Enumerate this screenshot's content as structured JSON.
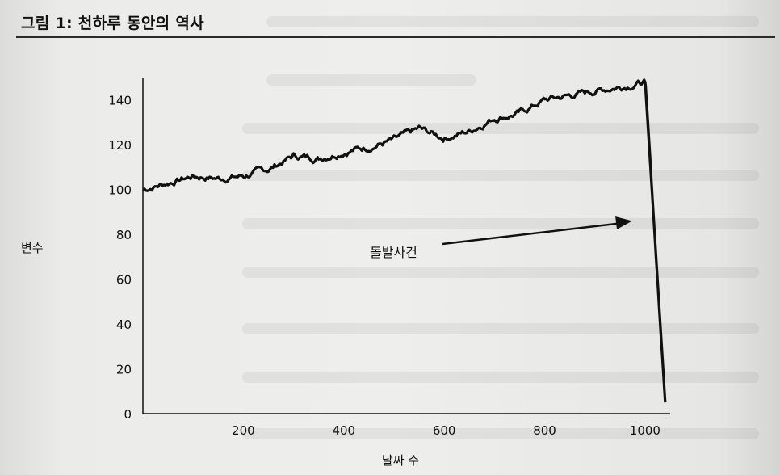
{
  "figure": {
    "title": "그림 1: 천하루 동안의 역사"
  },
  "chart_data": {
    "type": "line",
    "xlabel": "날짜 수",
    "ylabel": "변수",
    "xlim": [
      0,
      1050
    ],
    "ylim": [
      0,
      150
    ],
    "x_ticks": [
      200,
      400,
      600,
      800,
      1000
    ],
    "y_ticks": [
      0,
      20,
      40,
      60,
      80,
      100,
      120,
      140
    ],
    "grid": false,
    "annotation": {
      "text": "돌발사건",
      "arrow_to": [
        1000,
        86
      ]
    },
    "series": [
      {
        "x": [
          0,
          50,
          100,
          150,
          200,
          250,
          300,
          350,
          400,
          450,
          500,
          550,
          600,
          650,
          700,
          750,
          800,
          850,
          900,
          950,
          1000,
          1001,
          1040
        ],
        "values": [
          100,
          103,
          106,
          105,
          106,
          109,
          115,
          114,
          117,
          119,
          122,
          127,
          123,
          126,
          132,
          134,
          140,
          142,
          144,
          146,
          148,
          145,
          5
        ]
      }
    ]
  }
}
